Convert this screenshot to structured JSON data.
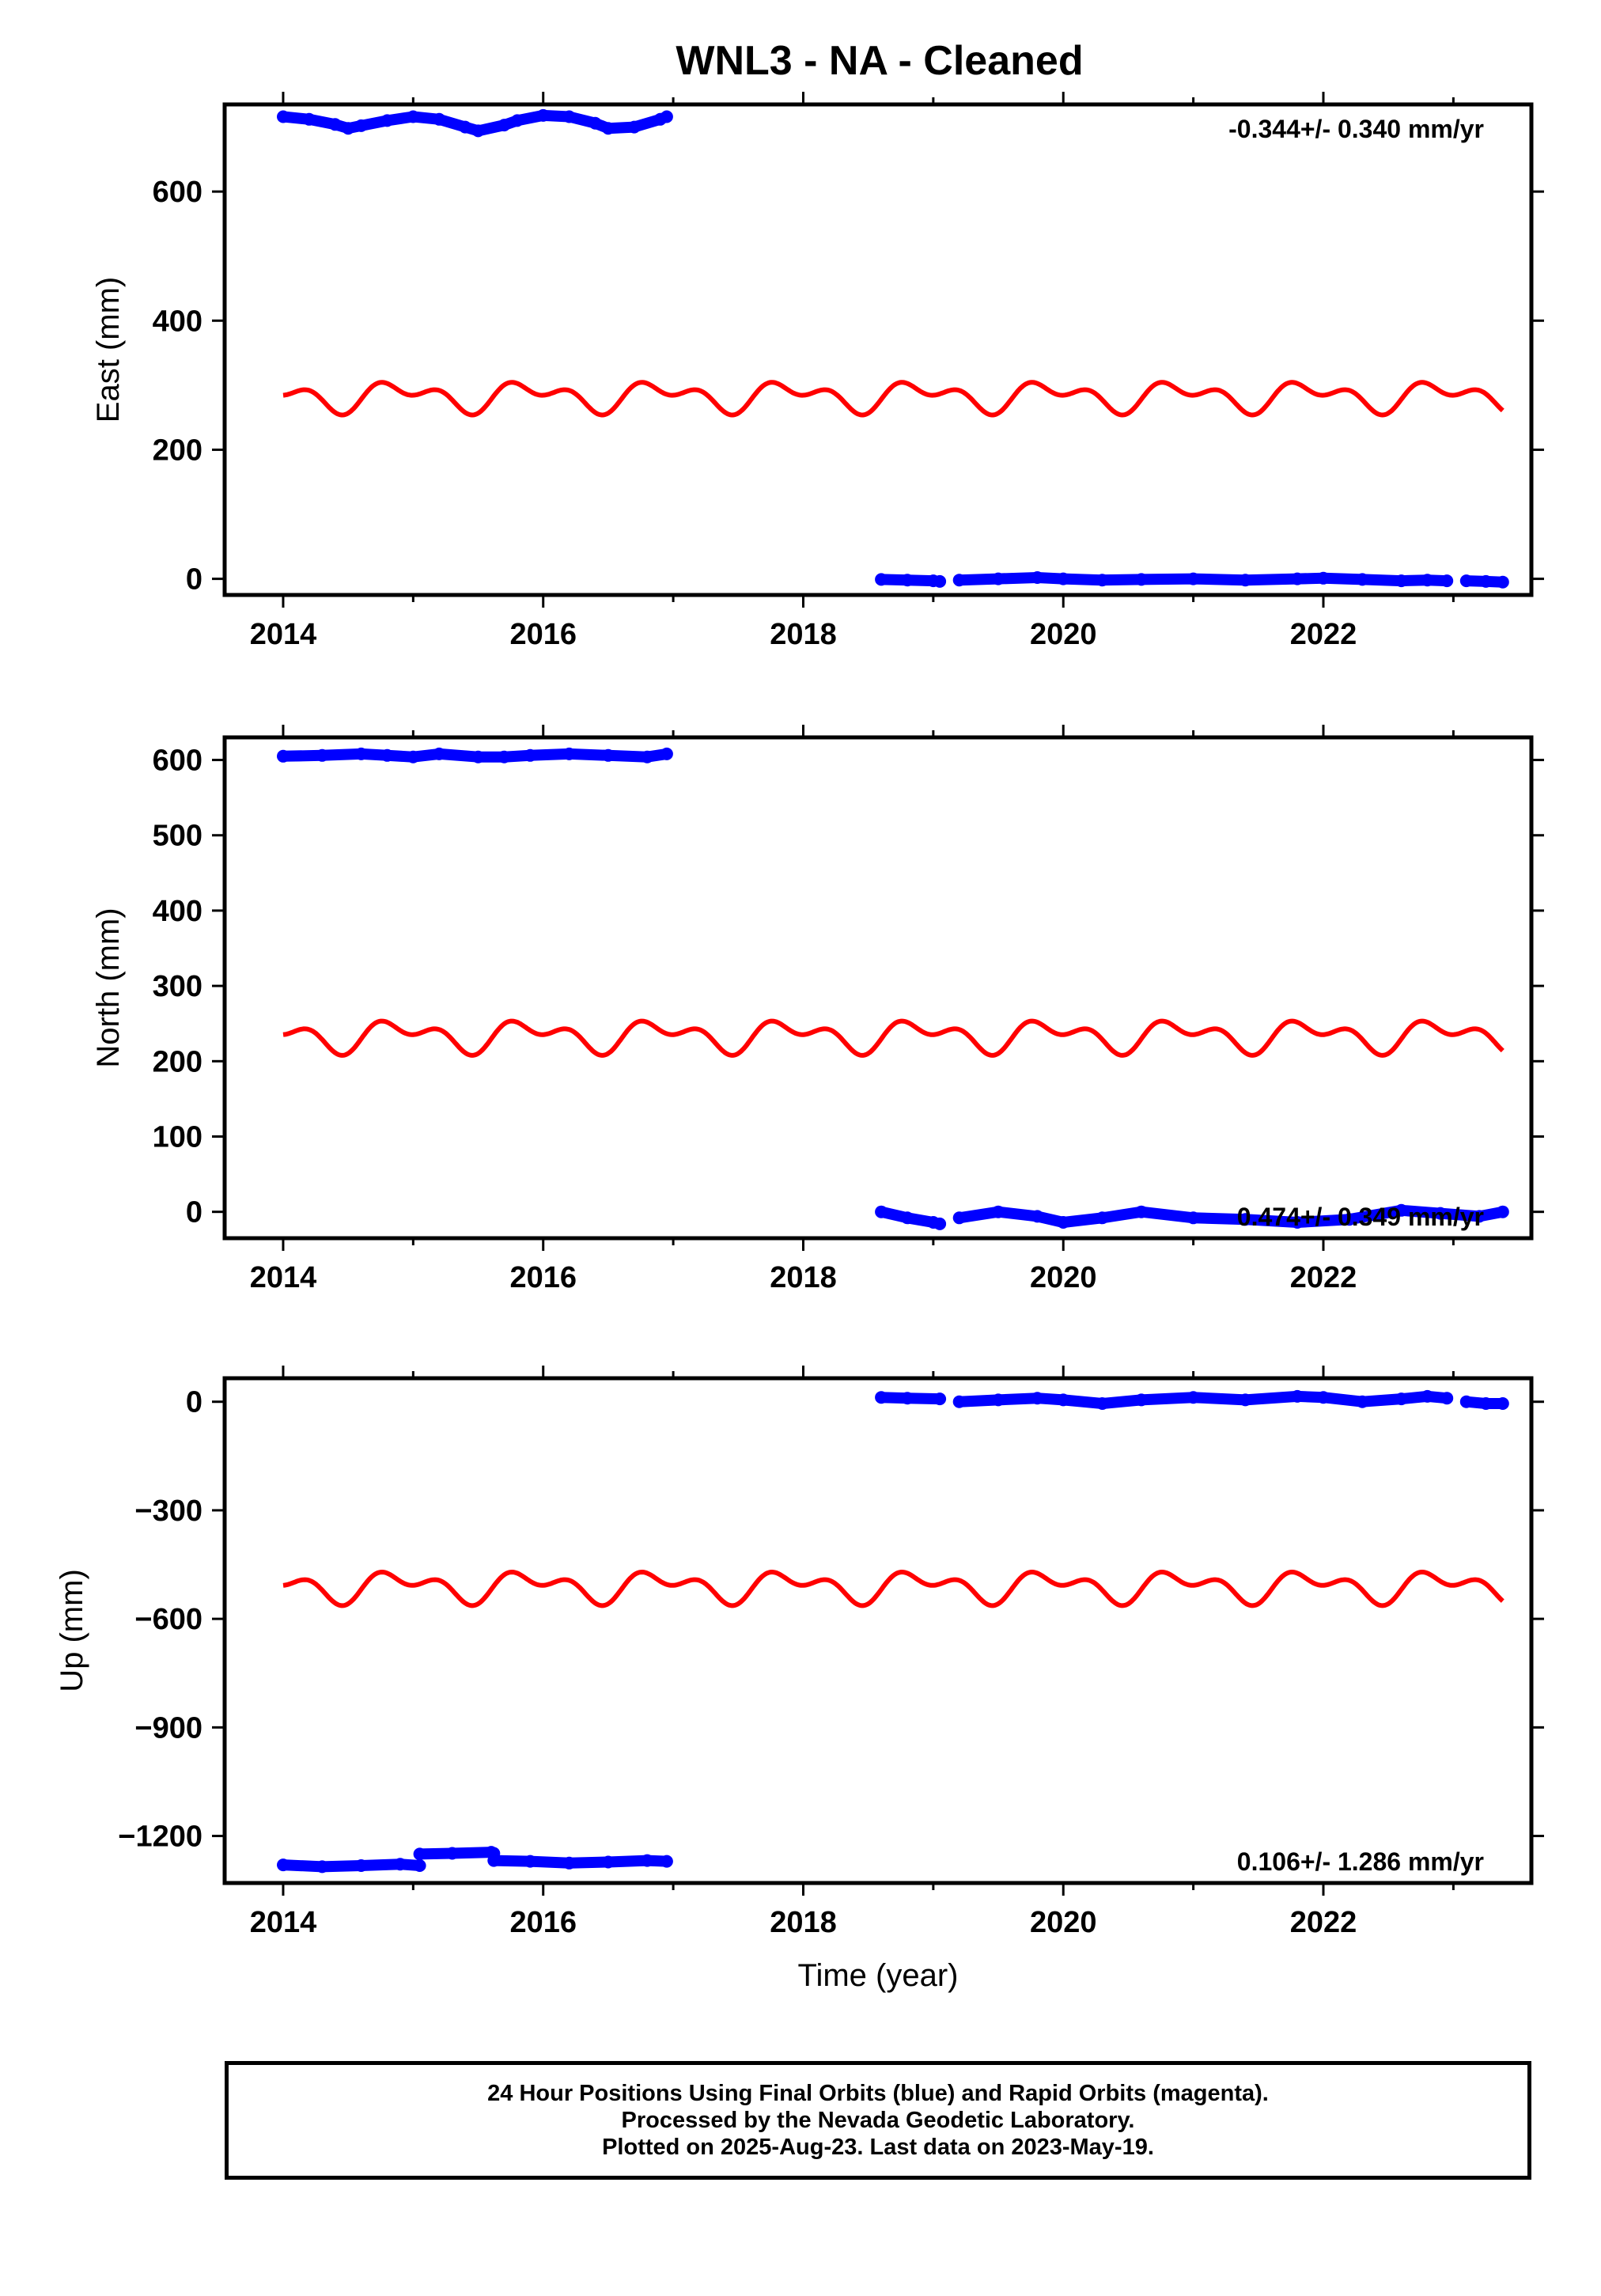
{
  "title": "WNL3  - NA - Cleaned",
  "colors": {
    "final_orbits": "#0000ff",
    "model": "#ff0000",
    "axes": "#000000"
  },
  "chart_data": [
    {
      "type": "scatter",
      "panel": "east",
      "ylabel": "East (mm)",
      "xlabel": "",
      "xlim": [
        2013.55,
        2023.6
      ],
      "ylim": [
        -25,
        735
      ],
      "xticks": [
        2014,
        2016,
        2018,
        2020,
        2022
      ],
      "yticks": [
        0,
        200,
        400,
        600
      ],
      "grid": false,
      "annotation": "-0.344+/- 0.340 mm/yr",
      "annotation_placement": "top-right",
      "series": [
        {
          "color": "blue",
          "segments": [
            {
              "x": [
                2014.0,
                2014.2,
                2014.4,
                2014.5,
                2014.6,
                2014.8,
                2015.0,
                2015.2,
                2015.4,
                2015.5,
                2015.7,
                2015.8,
                2016.0,
                2016.2,
                2016.4,
                2016.5,
                2016.7,
                2016.9,
                2016.95
              ],
              "y": [
                716,
                712,
                704,
                698,
                702,
                710,
                716,
                712,
                700,
                694,
                703,
                710,
                718,
                716,
                706,
                698,
                700,
                712,
                716
              ]
            },
            {
              "x": [
                2018.6,
                2018.8,
                2019.0,
                2019.05
              ],
              "y": [
                -1,
                -2,
                -3,
                -4
              ]
            },
            {
              "x": [
                2019.2,
                2019.5,
                2019.8,
                2020.0,
                2020.3,
                2020.6,
                2021.0,
                2021.4,
                2021.8,
                2022.0,
                2022.3,
                2022.6,
                2022.8,
                2022.95
              ],
              "y": [
                -2,
                0,
                2,
                0,
                -2,
                -1,
                0,
                -2,
                0,
                1,
                -1,
                -3,
                -2,
                -3
              ]
            },
            {
              "x": [
                2023.1,
                2023.25,
                2023.38
              ],
              "y": [
                -3,
                -4,
                -5
              ]
            }
          ]
        },
        {
          "color": "red",
          "type": "line",
          "annual_mean": 283,
          "annual_amplitude": 30,
          "start_x": 2014.0,
          "end_x": 2023.38
        }
      ]
    },
    {
      "type": "scatter",
      "panel": "north",
      "ylabel": "North (mm)",
      "xlabel": "",
      "xlim": [
        2013.55,
        2023.6
      ],
      "ylim": [
        -35,
        630
      ],
      "xticks": [
        2014,
        2016,
        2018,
        2020,
        2022
      ],
      "yticks": [
        0,
        100,
        200,
        300,
        400,
        500,
        600
      ],
      "grid": false,
      "annotation": "0.474+/- 0.349 mm/yr",
      "annotation_placement": "bottom-right",
      "series": [
        {
          "color": "blue",
          "segments": [
            {
              "x": [
                2014.0,
                2014.3,
                2014.6,
                2014.8,
                2015.0,
                2015.2,
                2015.5,
                2015.7,
                2015.9,
                2016.2,
                2016.5,
                2016.8,
                2016.95
              ],
              "y": [
                605,
                606,
                608,
                606,
                604,
                608,
                604,
                604,
                606,
                608,
                606,
                604,
                608
              ]
            },
            {
              "x": [
                2018.6,
                2018.8,
                2019.0,
                2019.05
              ],
              "y": [
                0,
                -8,
                -14,
                -16
              ]
            },
            {
              "x": [
                2019.2,
                2019.5,
                2019.8,
                2020.0,
                2020.3,
                2020.6,
                2021.0,
                2021.4,
                2021.8,
                2022.2,
                2022.6,
                2022.9,
                2023.2,
                2023.38
              ],
              "y": [
                -8,
                0,
                -6,
                -14,
                -8,
                0,
                -8,
                -10,
                -14,
                -10,
                2,
                -2,
                -6,
                0
              ]
            }
          ]
        },
        {
          "color": "red",
          "type": "line",
          "annual_mean": 234,
          "annual_amplitude": 27,
          "start_x": 2014.0,
          "end_x": 2023.38
        }
      ]
    },
    {
      "type": "scatter",
      "panel": "up",
      "ylabel": "Up (mm)",
      "xlabel": "Time (year)",
      "xlim": [
        2013.55,
        2023.6
      ],
      "ylim": [
        -1330,
        65
      ],
      "xticks": [
        2014,
        2016,
        2018,
        2020,
        2022
      ],
      "yticks": [
        0,
        -300,
        -600,
        -900,
        -1200
      ],
      "ytick_labels": [
        "0",
        "−300",
        "−600",
        "−900",
        "−1200"
      ],
      "grid": false,
      "annotation": "0.106+/- 1.286 mm/yr",
      "annotation_placement": "bottom-right",
      "series": [
        {
          "color": "blue",
          "segments": [
            {
              "x": [
                2014.0,
                2014.3,
                2014.6,
                2014.9,
                2015.05
              ],
              "y": [
                -1280,
                -1285,
                -1282,
                -1278,
                -1282
              ]
            },
            {
              "x": [
                2015.05,
                2015.3,
                2015.6,
                2015.62
              ],
              "y": [
                -1250,
                -1248,
                -1245,
                -1248
              ]
            },
            {
              "x": [
                2015.62,
                2015.9,
                2016.2,
                2016.5,
                2016.8,
                2016.95
              ],
              "y": [
                -1268,
                -1270,
                -1275,
                -1272,
                -1268,
                -1270
              ]
            },
            {
              "x": [
                2018.6,
                2018.8,
                2019.05
              ],
              "y": [
                12,
                10,
                8
              ]
            },
            {
              "x": [
                2019.2,
                2019.5,
                2019.8,
                2020.0,
                2020.3,
                2020.6,
                2021.0,
                2021.4,
                2021.8,
                2022.0,
                2022.3,
                2022.6,
                2022.8,
                2022.95
              ],
              "y": [
                0,
                5,
                10,
                5,
                -5,
                5,
                12,
                5,
                15,
                12,
                0,
                8,
                15,
                10
              ]
            },
            {
              "x": [
                2023.1,
                2023.25,
                2023.38
              ],
              "y": [
                0,
                -5,
                -5
              ]
            }
          ]
        },
        {
          "color": "red",
          "type": "line",
          "annual_mean": -510,
          "annual_amplitude": 55,
          "start_x": 2014.0,
          "end_x": 2023.38
        }
      ]
    }
  ],
  "footer": {
    "line1": "24 Hour Positions Using Final Orbits (blue) and Rapid Orbits (magenta).",
    "line2": "Processed by the Nevada Geodetic Laboratory.",
    "line3": "Plotted on 2025-Aug-23. Last data on 2023-May-19."
  }
}
